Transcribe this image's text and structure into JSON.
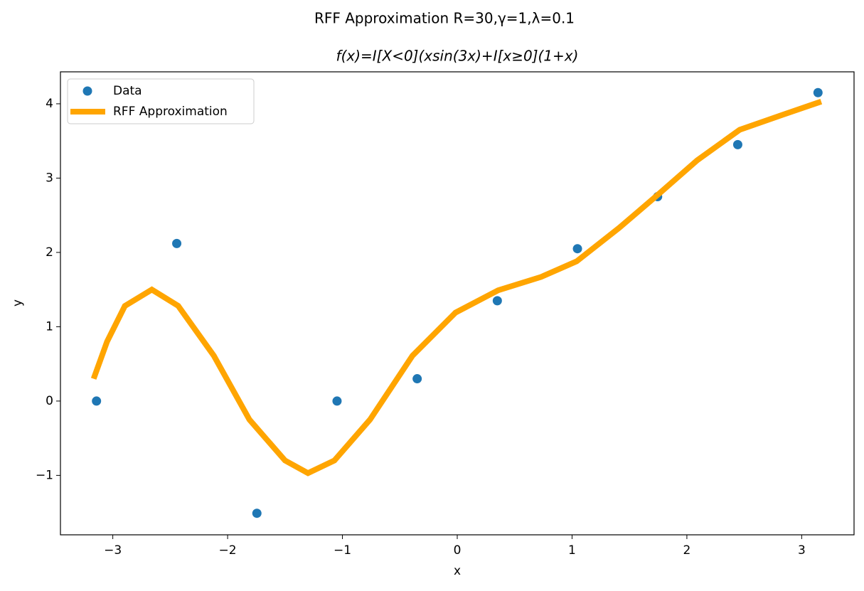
{
  "chart_data": {
    "type": "scatter",
    "title": "RFF Approximation R=30,γ=1,λ=0.1",
    "subtitle": "f(x)=I[X<0](xsin(3x)+I[x≥0](1+x)",
    "x_label": "x",
    "y_label": "y",
    "xlim": [
      -3.456,
      3.456
    ],
    "ylim": [
      -1.8,
      4.43
    ],
    "xticks": [
      {
        "value": -3,
        "label": "−3"
      },
      {
        "value": -2,
        "label": "−2"
      },
      {
        "value": -1,
        "label": "−1"
      },
      0,
      1,
      2,
      3
    ],
    "yticks": [
      {
        "value": -1,
        "label": "−1"
      },
      0,
      1,
      2,
      3,
      4
    ],
    "legend": "upper left",
    "series": [
      {
        "name": "Data",
        "type": "scatter",
        "color": "#1f77b4",
        "x": [
          -3.142,
          -2.443,
          -1.745,
          -1.047,
          -0.349,
          0.349,
          1.047,
          1.745,
          2.443,
          3.142
        ],
        "values": [
          0,
          2.12,
          -1.51,
          0,
          0.3,
          1.35,
          2.05,
          2.75,
          3.45,
          4.15
        ]
      },
      {
        "name": "RFF Approximation",
        "type": "line",
        "color": "#ffa500",
        "x": [
          -3.167,
          -3.05,
          -2.895,
          -2.66,
          -2.43,
          -2.12,
          -1.81,
          -1.5,
          -1.3,
          -1.07,
          -0.76,
          -0.39,
          -0.015,
          0.356,
          0.73,
          1.04,
          1.41,
          1.75,
          2.09,
          2.46,
          2.83,
          3.17
        ],
        "values": [
          0.3,
          0.8,
          1.28,
          1.5,
          1.28,
          0.61,
          -0.25,
          -0.8,
          -0.97,
          -0.8,
          -0.25,
          0.61,
          1.19,
          1.49,
          1.67,
          1.88,
          2.33,
          2.78,
          3.24,
          3.65,
          3.85,
          4.03
        ]
      }
    ]
  }
}
